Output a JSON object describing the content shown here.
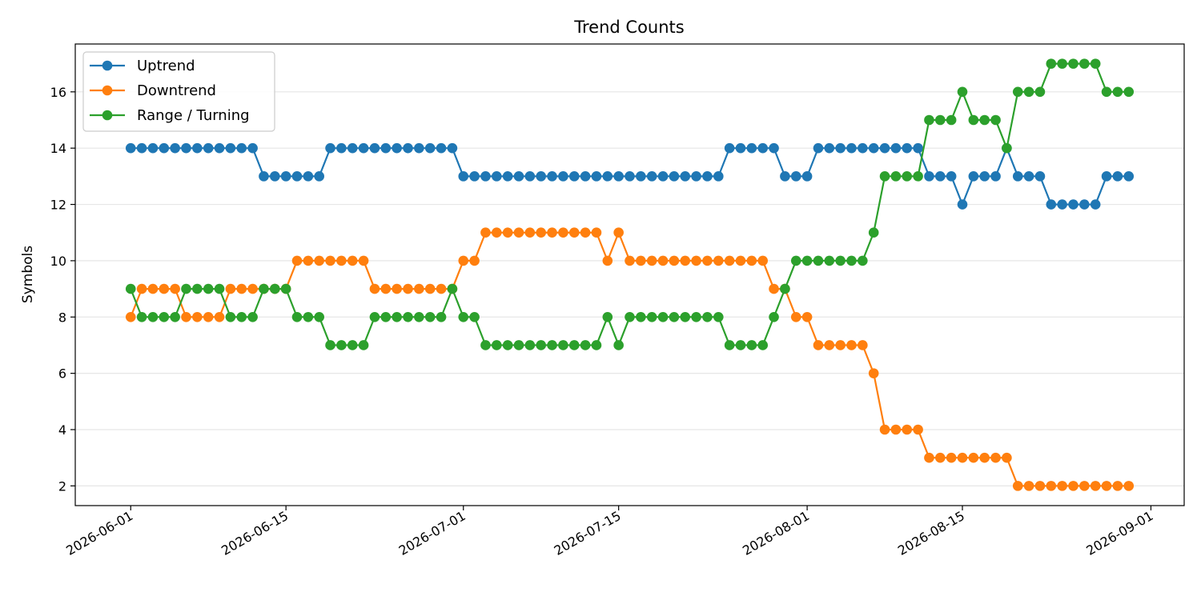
{
  "chart_data": {
    "type": "line",
    "title": "Trend Counts",
    "xlabel": "",
    "ylabel": "Symbols",
    "x_start": "2026-06-01",
    "x_end": "2026-08-30",
    "xlim": [
      "2026-05-27",
      "2026-09-04"
    ],
    "ylim": [
      1.3,
      17.7
    ],
    "x_ticks": [
      "2026-06-01",
      "2026-06-15",
      "2026-07-01",
      "2026-07-15",
      "2026-08-01",
      "2026-08-15",
      "2026-09-01"
    ],
    "y_ticks": [
      2,
      4,
      6,
      8,
      10,
      12,
      14,
      16
    ],
    "grid": "horizontal",
    "legend_position": "top-left",
    "series": [
      {
        "name": "Uptrend",
        "color": "#1f77b4",
        "values": [
          14,
          14,
          14,
          14,
          14,
          14,
          14,
          14,
          14,
          14,
          14,
          14,
          13,
          13,
          13,
          13,
          13,
          13,
          14,
          14,
          14,
          14,
          14,
          14,
          14,
          14,
          14,
          14,
          14,
          14,
          13,
          13,
          13,
          13,
          13,
          13,
          13,
          13,
          13,
          13,
          13,
          13,
          13,
          13,
          13,
          13,
          13,
          13,
          13,
          13,
          13,
          13,
          13,
          13,
          14,
          14,
          14,
          14,
          14,
          13,
          13,
          13,
          14,
          14,
          14,
          14,
          14,
          14,
          14,
          14,
          14,
          14,
          13,
          13,
          13,
          12,
          13,
          13,
          13,
          14,
          13,
          13,
          13,
          12,
          12,
          12,
          12,
          12,
          13,
          13,
          13
        ]
      },
      {
        "name": "Downtrend",
        "color": "#ff7f0e",
        "values": [
          8,
          9,
          9,
          9,
          9,
          8,
          8,
          8,
          8,
          9,
          9,
          9,
          9,
          9,
          9,
          10,
          10,
          10,
          10,
          10,
          10,
          10,
          9,
          9,
          9,
          9,
          9,
          9,
          9,
          9,
          10,
          10,
          11,
          11,
          11,
          11,
          11,
          11,
          11,
          11,
          11,
          11,
          11,
          10,
          11,
          10,
          10,
          10,
          10,
          10,
          10,
          10,
          10,
          10,
          10,
          10,
          10,
          10,
          9,
          9,
          8,
          8,
          7,
          7,
          7,
          7,
          7,
          6,
          4,
          4,
          4,
          4,
          3,
          3,
          3,
          3,
          3,
          3,
          3,
          3,
          2,
          2,
          2,
          2,
          2,
          2,
          2,
          2,
          2,
          2,
          2
        ]
      },
      {
        "name": "Range / Turning",
        "color": "#2ca02c",
        "values": [
          9,
          8,
          8,
          8,
          8,
          9,
          9,
          9,
          9,
          8,
          8,
          8,
          9,
          9,
          9,
          8,
          8,
          8,
          7,
          7,
          7,
          7,
          8,
          8,
          8,
          8,
          8,
          8,
          8,
          9,
          8,
          8,
          7,
          7,
          7,
          7,
          7,
          7,
          7,
          7,
          7,
          7,
          7,
          8,
          7,
          8,
          8,
          8,
          8,
          8,
          8,
          8,
          8,
          8,
          7,
          7,
          7,
          7,
          8,
          9,
          10,
          10,
          10,
          10,
          10,
          10,
          10,
          11,
          13,
          13,
          13,
          13,
          15,
          15,
          15,
          16,
          15,
          15,
          15,
          14,
          16,
          16,
          16,
          17,
          17,
          17,
          17,
          17,
          16,
          16,
          16
        ]
      }
    ]
  }
}
